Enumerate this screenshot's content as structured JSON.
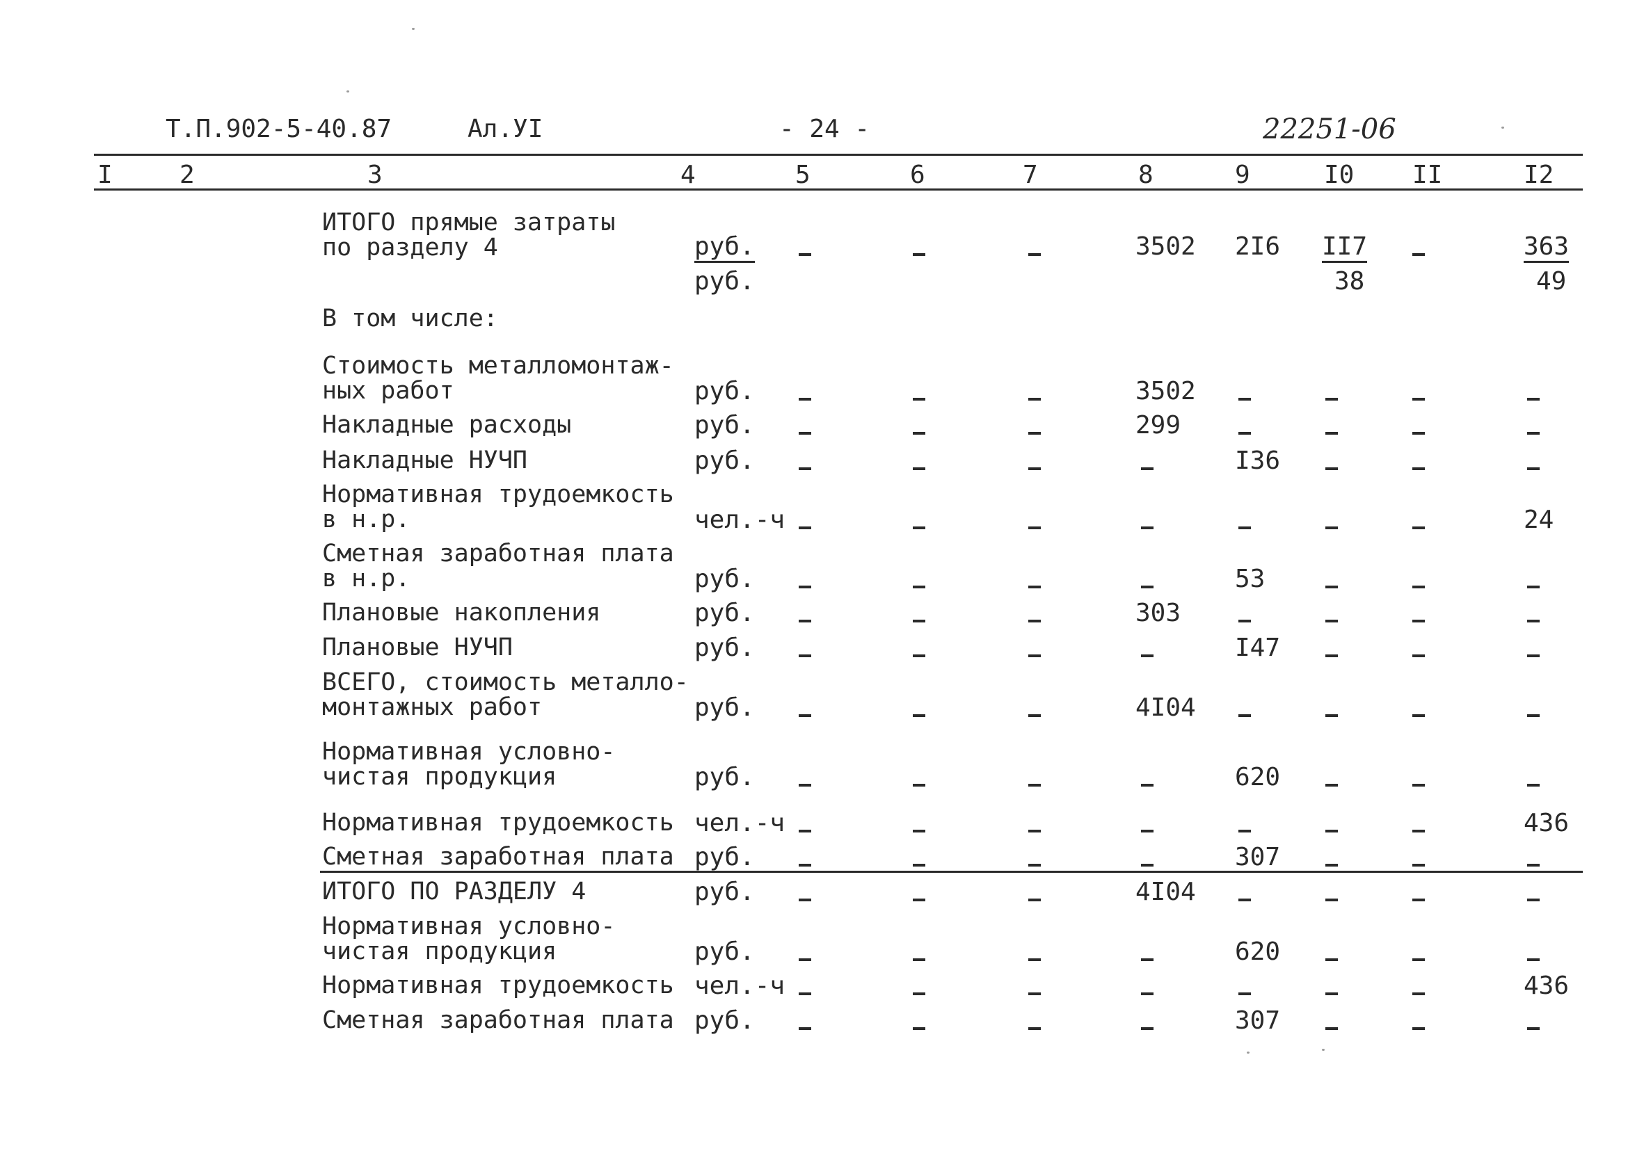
{
  "header": {
    "project_code": "Т.П.902-5-40.87",
    "album": "Ал.УI",
    "page": "- 24 -",
    "doc_number": "22251-06"
  },
  "columns": [
    "I",
    "2",
    "3",
    "4",
    "5",
    "6",
    "7",
    "8",
    "9",
    "I0",
    "II",
    "I2"
  ],
  "dash": "–",
  "rows": {
    "r1": {
      "label1": "ИТОГО прямые затраты",
      "label2": "по разделу 4",
      "unit": "руб.",
      "unit2": "руб.",
      "c8": "3502",
      "c9": "2I6",
      "c10_top": "II7",
      "c10_bottom": "38",
      "c12_top": "363",
      "c12_bottom": "49"
    },
    "r2": {
      "label1": "В том числе:"
    },
    "r3": {
      "label1": "Стоимость металломонтаж-",
      "label2": "ных работ",
      "unit": "руб.",
      "c8": "3502"
    },
    "r4": {
      "label1": "Накладные расходы",
      "unit": "руб.",
      "c8": "299"
    },
    "r5": {
      "label1": "Накладные НУЧП",
      "unit": "руб.",
      "c9": "I36"
    },
    "r6": {
      "label1": "Нормативная трудоемкость",
      "label2": "в н.р.",
      "unit": "чел.-ч",
      "c12": "24"
    },
    "r7": {
      "label1": "Сметная заработная плата",
      "label2": "в н.р.",
      "unit": "руб.",
      "c9": "53"
    },
    "r8": {
      "label1": "Плановые накопления",
      "unit": "руб.",
      "c8": "303"
    },
    "r9": {
      "label1": "Плановые НУЧП",
      "unit": "руб.",
      "c9": "I47"
    },
    "r10": {
      "label1": "ВСЕГО, стоимость металло-",
      "label2": "монтажных работ",
      "unit": "руб.",
      "c8": "4I04"
    },
    "r11": {
      "label1": "Нормативная условно-",
      "label2": "чистая продукция",
      "unit": "руб.",
      "c9": "620"
    },
    "r12": {
      "label1": "Нормативная трудоемкость",
      "unit": "чел.-ч",
      "c12": "436"
    },
    "r13": {
      "label1": "Сметная заработная плата",
      "unit": "руб.",
      "c9": "307"
    },
    "r14": {
      "label1": "ИТОГО ПО РАЗДЕЛУ 4",
      "unit": "руб.",
      "c8": "4I04"
    },
    "r15": {
      "label1": "Нормативная условно-",
      "label2": "чистая продукция",
      "unit": "руб.",
      "c9": "620"
    },
    "r16": {
      "label1": "Нормативная трудоемкость",
      "unit": "чел.-ч",
      "c12": "436"
    },
    "r17": {
      "label1": "Сметная заработная плата",
      "unit": "руб.",
      "c9": "307"
    }
  }
}
